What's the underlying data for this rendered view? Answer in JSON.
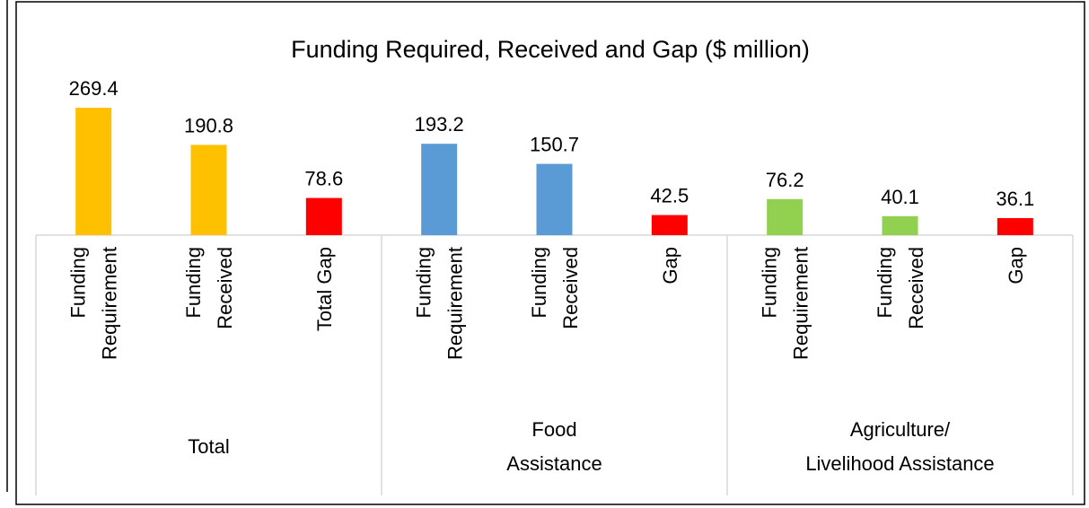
{
  "chart_data": {
    "type": "bar",
    "title": "Funding Required, Received and Gap ($ million)",
    "categories": [
      "Funding Requirement",
      "Funding Received",
      "Total Gap",
      "Funding Requirement",
      "Funding Received",
      "Gap",
      "Funding Requirement",
      "Funding Received",
      "Gap"
    ],
    "groups": [
      "Total",
      "Food Assistance",
      "Agriculture/Livelihood Assistance"
    ],
    "values": [
      269.4,
      190.8,
      78.6,
      193.2,
      150.7,
      42.5,
      76.2,
      40.1,
      36.1
    ],
    "colors": [
      "#ffc000",
      "#ffc000",
      "#ff0000",
      "#5b9bd5",
      "#5b9bd5",
      "#ff0000",
      "#92d050",
      "#92d050",
      "#ff0000"
    ]
  }
}
